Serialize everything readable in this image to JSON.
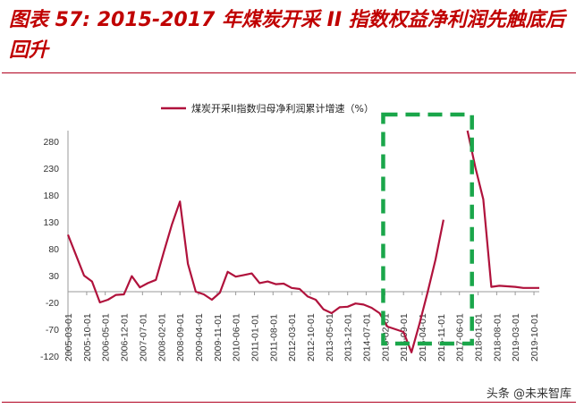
{
  "header": {
    "title": "图表 57: 2015-2017 年煤炭开采 II 指数权益净利润先触底后回升"
  },
  "footer": {
    "watermark": "头条 @未来智库"
  },
  "colors": {
    "title": "#c00000",
    "series": "#b0123c",
    "highlight_box": "#1aa64a",
    "rule": "#b0001e"
  },
  "chart_data": {
    "type": "line",
    "title": "",
    "xlabel": "",
    "ylabel": "",
    "ylim": [
      -120,
      300
    ],
    "y_ticks": [
      280,
      230,
      180,
      130,
      80,
      30,
      -20,
      -70,
      -120
    ],
    "legend": {
      "entry": "煤炭开采II指数归母净利润累计增速（%）",
      "placement": "top-center"
    },
    "grid": false,
    "x_tick_labels": [
      "2005-03-01",
      "2005-10-01",
      "2006-05-01",
      "2006-12-01",
      "2007-07-01",
      "2008-02-01",
      "2008-09-01",
      "2009-04-01",
      "2009-11-01",
      "2010-06-01",
      "2011-01-01",
      "2011-08-01",
      "2012-03-01",
      "2012-10-01",
      "2013-05-01",
      "2013-12-01",
      "2014-07-01",
      "2015-02-01",
      "2015-09-01",
      "2016-04-01",
      "2016-11-01",
      "2017-06-01",
      "2018-01-01",
      "2018-08-01",
      "2019-03-01",
      "2019-10-01"
    ],
    "annotation": {
      "type": "dashed-box",
      "x_start": "2015-02-01",
      "x_end": "2017-06-01"
    },
    "series": [
      {
        "name": "煤炭开采II指数归母净利润累计增速（%）",
        "x": [
          "2005-03-01",
          "2005-06-01",
          "2005-09-01",
          "2005-12-01",
          "2006-03-01",
          "2006-06-01",
          "2006-09-01",
          "2006-12-01",
          "2007-03-01",
          "2007-06-01",
          "2007-09-01",
          "2007-12-01",
          "2008-03-01",
          "2008-06-01",
          "2008-09-01",
          "2008-12-01",
          "2009-03-01",
          "2009-06-01",
          "2009-09-01",
          "2009-12-01",
          "2010-03-01",
          "2010-06-01",
          "2010-09-01",
          "2010-12-01",
          "2011-03-01",
          "2011-06-01",
          "2011-09-01",
          "2011-12-01",
          "2012-03-01",
          "2012-06-01",
          "2012-09-01",
          "2012-12-01",
          "2013-03-01",
          "2013-06-01",
          "2013-09-01",
          "2013-12-01",
          "2014-03-01",
          "2014-06-01",
          "2014-09-01",
          "2014-12-01",
          "2015-03-01",
          "2015-06-01",
          "2015-09-01",
          "2015-12-01",
          "2016-03-01",
          "2016-06-01",
          "2016-09-01",
          "2016-12-01",
          "2017-03-01",
          "2017-06-01",
          "2017-09-01",
          "2017-12-01",
          "2018-03-01",
          "2018-06-01",
          "2018-09-01",
          "2018-12-01",
          "2019-03-01",
          "2019-06-01",
          "2019-09-01",
          "2019-12-01"
        ],
        "values": [
          106,
          68,
          30,
          19,
          -20,
          -15,
          -6,
          -5,
          29,
          8,
          16,
          22,
          74,
          125,
          168,
          52,
          0,
          -5,
          -15,
          -2,
          37,
          28,
          31,
          34,
          16,
          19,
          14,
          15,
          7,
          5,
          -9,
          -15,
          -33,
          -40,
          -29,
          -28,
          -22,
          -24,
          -30,
          -40,
          -65,
          -70,
          -75,
          -113,
          -60,
          -2,
          60,
          134,
          null,
          null,
          300,
          231,
          172,
          9,
          11,
          10,
          9,
          7,
          7,
          7
        ]
      }
    ]
  }
}
